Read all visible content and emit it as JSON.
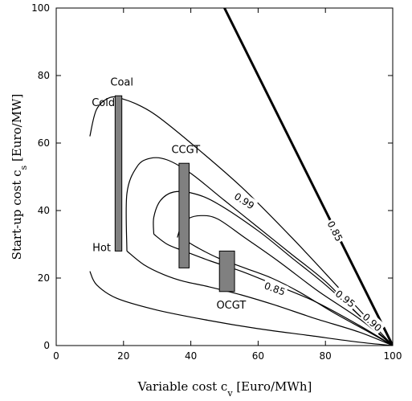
{
  "chart_data": {
    "type": "line",
    "title": "",
    "xlabel": "Variable cost c",
    "xlabel_sub": "v",
    "xlabel_unit": " [Euro/MWh]",
    "ylabel": "Start-up cost c",
    "ylabel_sub": "s",
    "ylabel_unit": " [Euro/MW]",
    "xlim": [
      0,
      100
    ],
    "ylim": [
      0,
      100
    ],
    "xticks": [
      "0",
      "20",
      "40",
      "60",
      "80",
      "100"
    ],
    "yticks": [
      "0",
      "20",
      "40",
      "60",
      "80",
      "100"
    ],
    "grid": false,
    "contours": [
      {
        "label": "",
        "points": [
          [
            10,
            22
          ],
          [
            12,
            18
          ],
          [
            18,
            14
          ],
          [
            30,
            10.5
          ],
          [
            45,
            7.5
          ],
          [
            60,
            5
          ],
          [
            75,
            3
          ],
          [
            90,
            1
          ],
          [
            100,
            0
          ]
        ]
      },
      {
        "label": "",
        "points": [
          [
            10,
            62
          ],
          [
            12,
            70
          ],
          [
            16,
            73.5
          ],
          [
            20,
            73
          ],
          [
            25,
            71
          ],
          [
            30,
            68
          ],
          [
            40,
            60
          ],
          [
            55,
            47
          ],
          [
            70,
            32
          ],
          [
            85,
            16
          ],
          [
            100,
            0
          ]
        ]
      },
      {
        "label": "",
        "points": [
          [
            21,
            28
          ],
          [
            21,
            45
          ],
          [
            24,
            53
          ],
          [
            28,
            55.5
          ],
          [
            33,
            55
          ],
          [
            40,
            51
          ],
          [
            50,
            43
          ],
          [
            60,
            35
          ],
          [
            70,
            27
          ],
          [
            80,
            19
          ],
          [
            90,
            9
          ],
          [
            100,
            0
          ]
        ]
      },
      {
        "label": "0.99",
        "points": [
          [
            29,
            33
          ],
          [
            29,
            38
          ],
          [
            31,
            43
          ],
          [
            35,
            45.5
          ],
          [
            41,
            45
          ],
          [
            48,
            42
          ],
          [
            60,
            34
          ],
          [
            70,
            26
          ],
          [
            80,
            18
          ],
          [
            90,
            9
          ],
          [
            100,
            0
          ]
        ]
      },
      {
        "label": "",
        "points": [
          [
            36,
            32
          ],
          [
            37,
            35
          ],
          [
            39,
            37.5
          ],
          [
            43,
            38.5
          ],
          [
            48,
            37.5
          ],
          [
            56,
            32
          ],
          [
            66,
            25
          ],
          [
            78,
            16
          ],
          [
            90,
            8
          ],
          [
            100,
            0
          ]
        ]
      },
      {
        "label": "",
        "points": [
          [
            29,
            33
          ],
          [
            33,
            30
          ],
          [
            38,
            28
          ],
          [
            46,
            25
          ],
          [
            55,
            22
          ],
          [
            65,
            18
          ],
          [
            77,
            13
          ],
          [
            90,
            6
          ],
          [
            100,
            0
          ]
        ]
      },
      {
        "label": "",
        "points": [
          [
            21,
            28
          ],
          [
            26,
            24
          ],
          [
            32,
            21
          ],
          [
            38,
            19
          ],
          [
            45,
            17.5
          ],
          [
            55,
            15
          ],
          [
            65,
            12
          ],
          [
            77,
            8
          ],
          [
            90,
            4
          ],
          [
            100,
            0
          ]
        ]
      },
      {
        "label": "0.85",
        "points": [
          [
            37,
            32
          ],
          [
            42,
            29
          ],
          [
            48,
            26
          ],
          [
            56,
            23
          ],
          [
            64,
            20
          ],
          [
            72,
            16
          ],
          [
            82,
            10
          ],
          [
            92,
            4.5
          ],
          [
            100,
            0
          ]
        ]
      }
    ],
    "diagonal": {
      "label": "0.85",
      "points": [
        [
          50,
          100
        ],
        [
          100,
          0
        ]
      ]
    },
    "line_labels": [
      {
        "text": "0.99",
        "x": 56,
        "y": 43,
        "angle": 33
      },
      {
        "text": "0.85",
        "x": 83,
        "y": 34,
        "angle": 63
      },
      {
        "text": "0.85",
        "x": 65,
        "y": 17,
        "angle": 20
      },
      {
        "text": "0.95",
        "x": 86,
        "y": 14,
        "angle": 37
      },
      {
        "text": "0.90",
        "x": 94,
        "y": 7,
        "angle": 42
      }
    ],
    "technologies": [
      {
        "name": "Coal",
        "x_range": [
          17.5,
          19.5
        ],
        "y_range": [
          28,
          74
        ]
      },
      {
        "name": "CCGT",
        "x_range": [
          36.5,
          39.5
        ],
        "y_range": [
          23,
          54
        ]
      },
      {
        "name": "OCGT",
        "x_range": [
          48.5,
          53
        ],
        "y_range": [
          16,
          28
        ]
      }
    ],
    "annotations": [
      {
        "text": "Coal",
        "x": 19.5,
        "y": 77
      },
      {
        "text": "Cold",
        "x": 14,
        "y": 71
      },
      {
        "text": "Hot",
        "x": 13.5,
        "y": 28
      },
      {
        "text": "CCGT",
        "x": 38.5,
        "y": 57
      },
      {
        "text": "OCGT",
        "x": 52,
        "y": 11
      }
    ]
  }
}
